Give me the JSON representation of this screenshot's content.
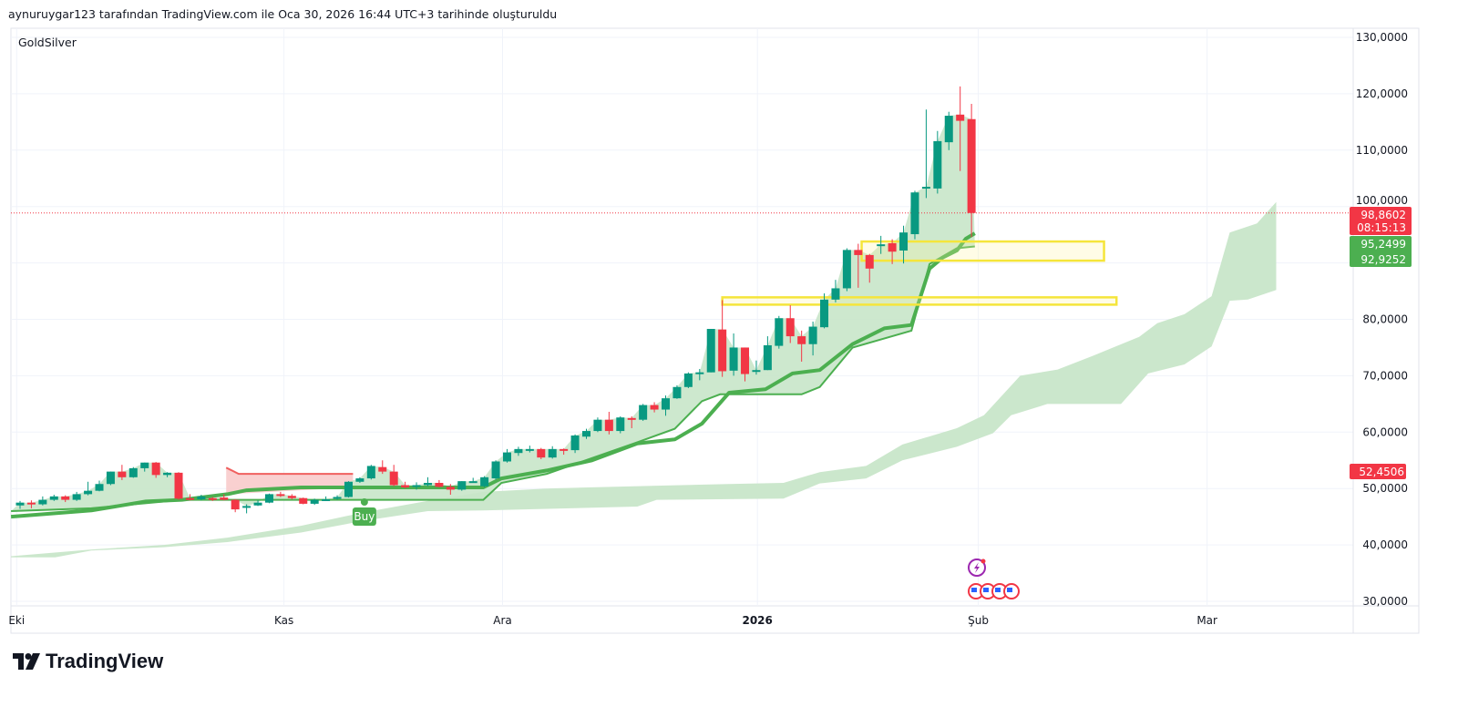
{
  "header": {
    "caption": "aynuruygar123 tarafından TradingView.com ile Oca 30, 2026 16:44 UTC+3 tarihinde oluşturuldu"
  },
  "symbol": {
    "name": "GoldSilver"
  },
  "branding": {
    "logo_text": "TradingView"
  },
  "colors": {
    "up": "#089981",
    "down": "#f23645",
    "trend": "#4caf50",
    "fill": "#c8e6c9",
    "red_zone": "#f8c8c8",
    "box": "#f5e53b",
    "grid": "#f0f3fa"
  },
  "price_tags": {
    "last": {
      "value": "98,8602",
      "countdown": "08:15:13",
      "color": "#f23645"
    },
    "trend_thick": {
      "value": "95,2499",
      "color": "#4caf50"
    },
    "trend_thin": {
      "value": "92,9252",
      "color": "#4caf50"
    },
    "red_level": {
      "value": "52,4506",
      "color": "#f23645"
    }
  },
  "signal": {
    "label": "Buy"
  },
  "chart_data": {
    "type": "candlestick",
    "title": "GoldSilver",
    "ylim": [
      30,
      130
    ],
    "y_ticks": [
      {
        "v": 130,
        "label": "130,0000"
      },
      {
        "v": 120,
        "label": "120,0000"
      },
      {
        "v": 110,
        "label": "110,0000"
      },
      {
        "v": 100,
        "label": "100,0000"
      },
      {
        "v": 90,
        "label": ""
      },
      {
        "v": 80,
        "label": "80,0000"
      },
      {
        "v": 70,
        "label": "70,0000"
      },
      {
        "v": 60,
        "label": "60,0000"
      },
      {
        "v": 50,
        "label": "50,0000"
      },
      {
        "v": 40,
        "label": "40,0000"
      },
      {
        "v": 30,
        "label": "30,0000"
      }
    ],
    "x_ticks": [
      {
        "i": -0.3,
        "label": "Eki",
        "bold": false
      },
      {
        "i": 23.3,
        "label": "Kas",
        "bold": false
      },
      {
        "i": 42.6,
        "label": "Ara",
        "bold": false
      },
      {
        "i": 65.1,
        "label": "2026",
        "bold": true
      },
      {
        "i": 84.6,
        "label": "Şub",
        "bold": false
      },
      {
        "i": 104.8,
        "label": "Mar",
        "bold": false
      }
    ],
    "candles_ohlc": [
      [
        47.0,
        47.8,
        46.4,
        47.5
      ],
      [
        47.5,
        47.9,
        46.5,
        47.2
      ],
      [
        47.2,
        48.6,
        47.0,
        48.0
      ],
      [
        48.0,
        48.9,
        47.8,
        48.6
      ],
      [
        48.6,
        48.8,
        47.6,
        48.0
      ],
      [
        48.0,
        49.4,
        47.8,
        49.0
      ],
      [
        49.0,
        51.2,
        48.8,
        49.6
      ],
      [
        49.6,
        51.4,
        49.5,
        50.8
      ],
      [
        50.8,
        53.0,
        50.6,
        53.0
      ],
      [
        53.0,
        54.2,
        51.5,
        52.0
      ],
      [
        52.0,
        53.8,
        51.9,
        53.6
      ],
      [
        53.6,
        54.6,
        53.0,
        54.6
      ],
      [
        54.6,
        54.7,
        51.9,
        52.4
      ],
      [
        52.4,
        52.9,
        52.0,
        52.8
      ],
      [
        52.8,
        52.9,
        48.0,
        48.2
      ],
      [
        48.3,
        49.0,
        47.9,
        48.0
      ],
      [
        48.1,
        48.9,
        47.9,
        48.6
      ],
      [
        48.3,
        48.5,
        47.8,
        48.0
      ],
      [
        48.4,
        49.0,
        47.9,
        48.0
      ],
      [
        48.0,
        48.1,
        45.8,
        46.3
      ],
      [
        46.9,
        47.2,
        45.6,
        46.9
      ],
      [
        47.0,
        47.9,
        46.9,
        47.5
      ],
      [
        47.5,
        49.1,
        47.4,
        49.0
      ],
      [
        49.0,
        49.4,
        48.5,
        48.7
      ],
      [
        48.7,
        49.0,
        48.1,
        48.3
      ],
      [
        48.3,
        48.4,
        47.2,
        47.3
      ],
      [
        47.3,
        48.2,
        47.1,
        48.0
      ],
      [
        48.0,
        48.6,
        47.8,
        48.1
      ],
      [
        48.2,
        48.8,
        48.0,
        48.5
      ],
      [
        48.5,
        51.3,
        48.4,
        51.2
      ],
      [
        51.2,
        52.0,
        51.0,
        51.8
      ],
      [
        51.8,
        54.2,
        51.6,
        54.0
      ],
      [
        53.8,
        55.0,
        52.6,
        53.0
      ],
      [
        53.0,
        54.2,
        50.4,
        50.6
      ],
      [
        50.6,
        51.2,
        50.0,
        50.2
      ],
      [
        50.3,
        51.1,
        49.8,
        50.6
      ],
      [
        50.6,
        52.0,
        50.4,
        51.0
      ],
      [
        51.0,
        51.5,
        50.2,
        50.3
      ],
      [
        50.3,
        50.8,
        48.9,
        49.8
      ],
      [
        49.8,
        51.3,
        49.6,
        51.3
      ],
      [
        51.3,
        51.9,
        51.1,
        51.3
      ],
      [
        50.4,
        52.2,
        50.2,
        52.0
      ],
      [
        51.8,
        55.0,
        51.6,
        54.8
      ],
      [
        54.8,
        57.0,
        54.6,
        56.4
      ],
      [
        56.3,
        57.4,
        55.8,
        57.0
      ],
      [
        57.0,
        57.6,
        56.4,
        57.0
      ],
      [
        57.0,
        57.2,
        55.2,
        55.5
      ],
      [
        55.5,
        57.5,
        55.3,
        57.0
      ],
      [
        57.0,
        57.1,
        56.0,
        56.8
      ],
      [
        56.8,
        59.6,
        56.3,
        59.4
      ],
      [
        59.2,
        60.6,
        58.8,
        60.2
      ],
      [
        60.2,
        62.6,
        60.0,
        62.2
      ],
      [
        62.2,
        63.6,
        59.6,
        60.2
      ],
      [
        60.2,
        62.8,
        59.8,
        62.6
      ],
      [
        62.5,
        62.8,
        60.7,
        62.2
      ],
      [
        62.2,
        65.0,
        62.0,
        64.8
      ],
      [
        64.8,
        65.3,
        63.5,
        64.0
      ],
      [
        64.0,
        66.5,
        62.9,
        66.0
      ],
      [
        66.0,
        68.3,
        65.9,
        68.0
      ],
      [
        68.0,
        70.6,
        67.8,
        70.4
      ],
      [
        70.4,
        71.2,
        69.2,
        70.6
      ],
      [
        70.6,
        78.3,
        70.6,
        78.3
      ],
      [
        78.2,
        83.4,
        69.8,
        70.8
      ],
      [
        70.9,
        77.5,
        70.0,
        75.0
      ],
      [
        75.0,
        75.0,
        69.0,
        70.3
      ],
      [
        70.8,
        72.7,
        70.2,
        71.0
      ],
      [
        71.0,
        77.0,
        71.0,
        75.4
      ],
      [
        75.3,
        80.6,
        74.8,
        80.2
      ],
      [
        80.2,
        82.5,
        75.8,
        77.0
      ],
      [
        77.0,
        78.0,
        72.5,
        75.6
      ],
      [
        75.6,
        79.6,
        73.6,
        78.7
      ],
      [
        78.6,
        84.6,
        78.4,
        83.5
      ],
      [
        83.5,
        87.0,
        83.0,
        85.5
      ],
      [
        85.5,
        92.6,
        85.0,
        92.3
      ],
      [
        92.3,
        93.4,
        85.6,
        91.4
      ],
      [
        91.4,
        91.6,
        86.5,
        89.0
      ],
      [
        93.0,
        94.8,
        91.6,
        93.3
      ],
      [
        93.5,
        94.2,
        89.8,
        92.0
      ],
      [
        92.2,
        96.6,
        89.9,
        95.4
      ],
      [
        95.1,
        102.8,
        94.2,
        102.5
      ],
      [
        103.3,
        117.2,
        101.5,
        103.5
      ],
      [
        103.2,
        113.4,
        102.3,
        111.6
      ],
      [
        111.4,
        116.8,
        110.0,
        116.1
      ],
      [
        116.3,
        121.3,
        106.3,
        115.2
      ],
      [
        115.5,
        118.2,
        94.6,
        98.86
      ]
    ],
    "last_price": 98.8602,
    "trend_thick": [
      [
        -0.8,
        45.0
      ],
      [
        6.3,
        46.1
      ],
      [
        11.1,
        47.7
      ],
      [
        14.3,
        48.0
      ],
      [
        18.3,
        49.0
      ],
      [
        20.0,
        49.7
      ],
      [
        24.8,
        50.2
      ],
      [
        40.9,
        50.2
      ],
      [
        42.5,
        51.8
      ],
      [
        46.5,
        53.2
      ],
      [
        50.5,
        55.0
      ],
      [
        54.5,
        58.0
      ],
      [
        57.8,
        58.7
      ],
      [
        60.2,
        61.5
      ],
      [
        62.6,
        67.0
      ],
      [
        65.8,
        67.6
      ],
      [
        68.2,
        70.4
      ],
      [
        70.6,
        71.0
      ],
      [
        73.5,
        75.6
      ],
      [
        76.3,
        78.4
      ],
      [
        78.7,
        79.0
      ],
      [
        80.3,
        89.0
      ],
      [
        81.5,
        91.0
      ],
      [
        82.7,
        92.2
      ],
      [
        83.5,
        94.3
      ],
      [
        84.3,
        95.25
      ]
    ],
    "trend_thin": [
      [
        -0.8,
        46.0
      ],
      [
        6.3,
        46.5
      ],
      [
        14.3,
        48.0
      ],
      [
        30.4,
        48.0
      ],
      [
        40.9,
        48.0
      ],
      [
        42.5,
        51.0
      ],
      [
        46.5,
        52.6
      ],
      [
        54.5,
        58.2
      ],
      [
        57.8,
        60.6
      ],
      [
        60.2,
        65.5
      ],
      [
        61.8,
        66.7
      ],
      [
        69.0,
        66.7
      ],
      [
        70.6,
        68.0
      ],
      [
        73.5,
        75.0
      ],
      [
        78.7,
        78.0
      ],
      [
        80.3,
        89.8
      ],
      [
        82.7,
        92.6
      ],
      [
        84.3,
        92.93
      ]
    ],
    "cloud_upper": [
      [
        -0.8,
        38.0
      ],
      [
        6.3,
        39.2
      ],
      [
        12.7,
        40.0
      ],
      [
        18.3,
        41.3
      ],
      [
        24.8,
        43.4
      ],
      [
        30.4,
        45.8
      ],
      [
        36.0,
        47.8
      ],
      [
        40.9,
        49.4
      ],
      [
        46.5,
        50.0
      ],
      [
        56.2,
        50.5
      ],
      [
        62.6,
        50.8
      ],
      [
        67.4,
        51.0
      ],
      [
        70.6,
        52.9
      ],
      [
        74.7,
        54.0
      ],
      [
        77.9,
        57.8
      ],
      [
        82.7,
        60.7
      ],
      [
        85.1,
        63.0
      ],
      [
        88.3,
        70.0
      ],
      [
        91.6,
        71.1
      ],
      [
        94.8,
        73.6
      ],
      [
        98.8,
        76.9
      ],
      [
        100.4,
        79.3
      ],
      [
        102.8,
        80.9
      ],
      [
        105.2,
        84.1
      ],
      [
        106.8,
        95.4
      ],
      [
        109.2,
        97.0
      ],
      [
        110.9,
        100.8
      ]
    ],
    "cloud_lower": [
      [
        -0.8,
        37.8
      ],
      [
        3.1,
        37.8
      ],
      [
        6.3,
        39.0
      ],
      [
        12.7,
        39.6
      ],
      [
        18.3,
        40.5
      ],
      [
        24.8,
        42.2
      ],
      [
        30.4,
        44.3
      ],
      [
        36.0,
        46.0
      ],
      [
        40.9,
        46.1
      ],
      [
        54.5,
        46.8
      ],
      [
        56.2,
        48.0
      ],
      [
        67.4,
        48.2
      ],
      [
        70.6,
        50.9
      ],
      [
        74.7,
        51.8
      ],
      [
        77.9,
        55.0
      ],
      [
        82.7,
        57.4
      ],
      [
        85.9,
        59.8
      ],
      [
        87.5,
        63.0
      ],
      [
        90.7,
        65.0
      ],
      [
        97.2,
        65.0
      ],
      [
        99.6,
        70.4
      ],
      [
        102.8,
        72.0
      ],
      [
        105.2,
        75.2
      ],
      [
        106.8,
        83.3
      ],
      [
        108.4,
        83.5
      ],
      [
        110.9,
        85.2
      ]
    ],
    "red_zone_line": [
      [
        18.2,
        53.7
      ],
      [
        19.3,
        52.6
      ],
      [
        29.4,
        52.6
      ]
    ],
    "zones": [
      {
        "from_i": 62.0,
        "to_i": 96.8,
        "top": 83.9,
        "bottom": 82.6
      },
      {
        "from_i": 74.3,
        "to_i": 95.7,
        "top": 93.8,
        "bottom": 90.4
      }
    ],
    "buy_signal": {
      "i": 30.4,
      "price": 47.6
    }
  }
}
